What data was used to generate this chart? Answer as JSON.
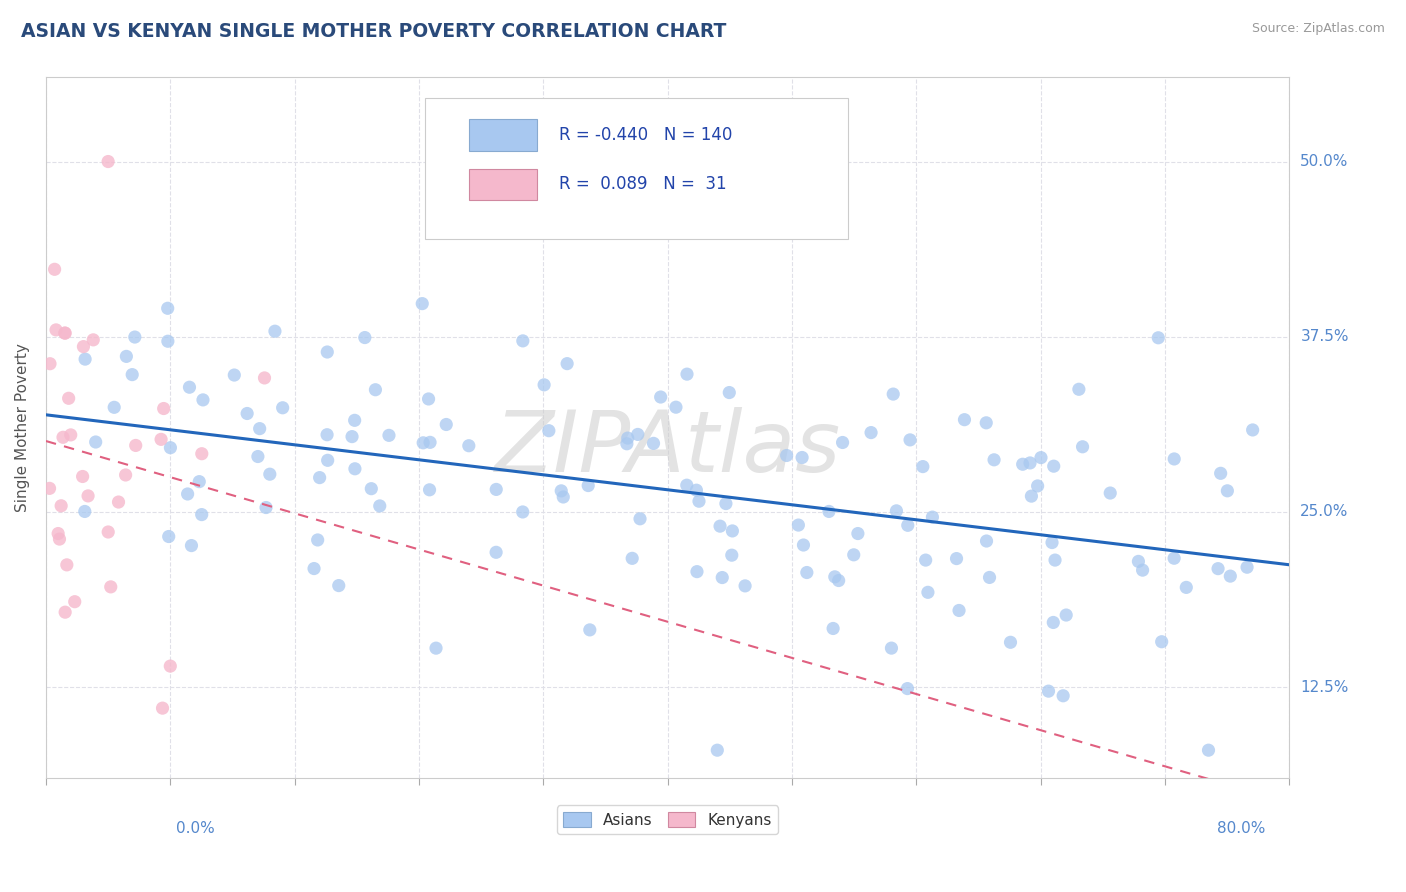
{
  "title": "ASIAN VS KENYAN SINGLE MOTHER POVERTY CORRELATION CHART",
  "source_text": "Source: ZipAtlas.com",
  "ylabel": "Single Mother Poverty",
  "ytick_labels": [
    "12.5%",
    "25.0%",
    "37.5%",
    "50.0%"
  ],
  "ytick_values": [
    0.125,
    0.25,
    0.375,
    0.5
  ],
  "xlim": [
    0.0,
    0.8
  ],
  "ylim": [
    0.06,
    0.56
  ],
  "asian_color": "#a8c8f0",
  "kenyan_color": "#f5b8cc",
  "asian_line_color": "#2266bb",
  "kenyan_line_color": "#e06080",
  "kenyan_line_dash_color": "#e8a0b0",
  "asian_R": -0.44,
  "asian_N": 140,
  "kenyan_R": 0.089,
  "kenyan_N": 31,
  "watermark": "ZIPAtlas",
  "legend_label_asian": "Asians",
  "legend_label_kenyan": "Kenyans",
  "title_color": "#2a4a7a",
  "axis_label_color": "#5588cc",
  "legend_R_color": "#2244aa",
  "background_color": "#ffffff",
  "grid_color": "#e0e0e8",
  "grid_style": "--"
}
